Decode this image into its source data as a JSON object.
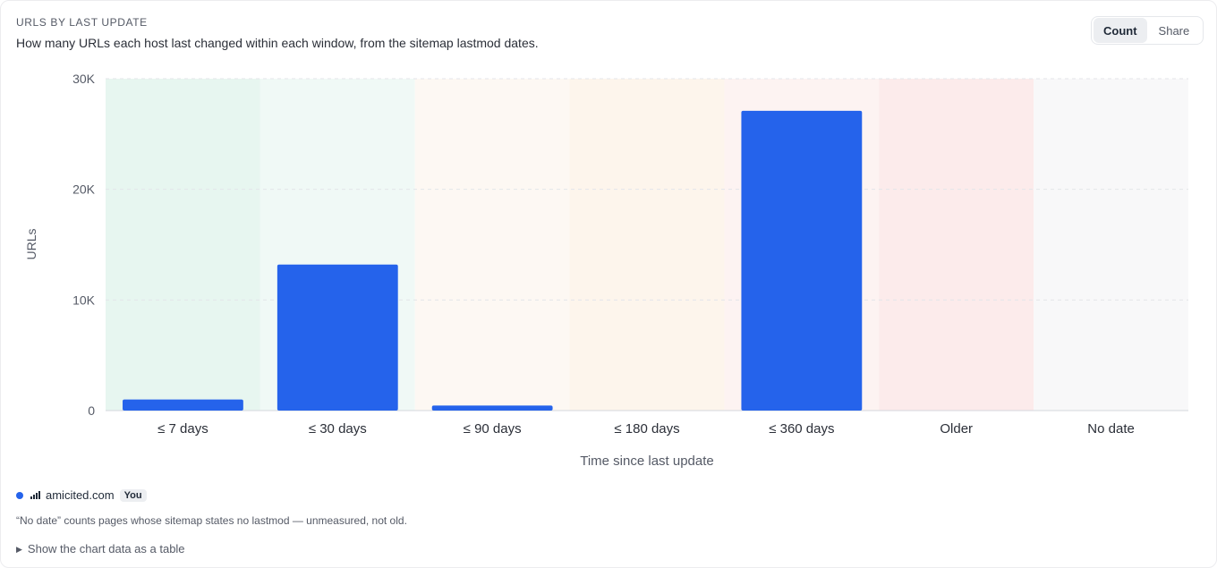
{
  "header": {
    "eyebrow": "URLS BY LAST UPDATE",
    "subtitle": "How many URLs each host last changed within each window, from the sitemap lastmod dates."
  },
  "mode_toggle": {
    "options": [
      "Count",
      "Share"
    ],
    "selected": "Count"
  },
  "chart_data": {
    "type": "bar",
    "categories": [
      "≤ 7 days",
      "≤ 30 days",
      "≤ 90 days",
      "≤ 180 days",
      "≤ 360 days",
      "Older",
      "No date"
    ],
    "series": [
      {
        "name": "amicited.com",
        "values": [
          1000,
          13200,
          450,
          0,
          27100,
          0,
          0
        ],
        "color": "#2563eb"
      }
    ],
    "xlabel": "Time since last update",
    "ylabel": "URLs",
    "ylim": [
      0,
      30000
    ],
    "yticks": [
      0,
      10000,
      20000,
      30000
    ],
    "ytick_labels": [
      "0",
      "10K",
      "20K",
      "30K"
    ],
    "band_colors": [
      "#e7f6f0",
      "#f0f9f6",
      "#fdf8f3",
      "#fdf5ec",
      "#fdf3f2",
      "#fcebeb",
      "#f8f8f9"
    ],
    "grid": true
  },
  "legend": {
    "host": "amicited.com",
    "badge": "You",
    "color": "#2563eb"
  },
  "footnote": "“No date” counts pages whose sitemap states no lastmod — unmeasured, not old.",
  "table_toggle": "Show the chart data as a table"
}
